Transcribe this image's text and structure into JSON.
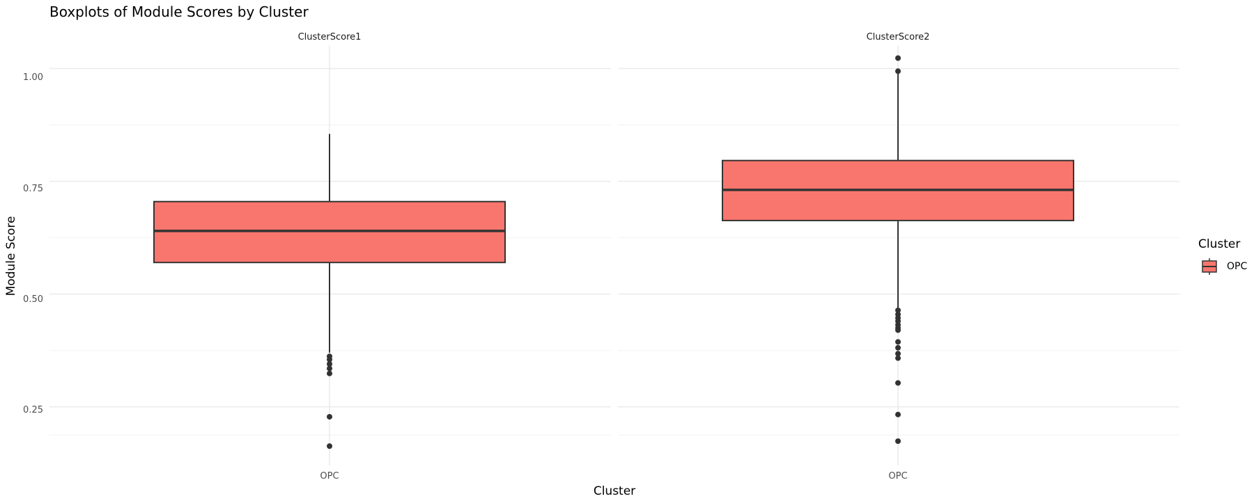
{
  "chart_data": {
    "type": "boxplot",
    "title": "Boxplots of Module Scores by Cluster",
    "xlabel": "Cluster",
    "ylabel": "Module Score",
    "ylim": [
      0.12,
      1.05
    ],
    "yticks": [
      0.25,
      0.5,
      0.75,
      1.0
    ],
    "ytick_labels": [
      "0.25",
      "0.50",
      "0.75",
      "1.00"
    ],
    "grid": true,
    "legend": {
      "title": "Cluster",
      "position": "right",
      "entries": [
        {
          "label": "OPC",
          "color": "#F8766D"
        }
      ]
    },
    "panels": [
      {
        "strip": "ClusterScore1",
        "category": "OPC",
        "q1": 0.57,
        "median": 0.64,
        "q3": 0.705,
        "whisker_low": 0.37,
        "whisker_high": 0.855,
        "outliers": [
          0.362,
          0.355,
          0.345,
          0.335,
          0.324,
          0.228,
          0.163
        ]
      },
      {
        "strip": "ClusterScore2",
        "category": "OPC",
        "q1": 0.663,
        "median": 0.731,
        "q3": 0.796,
        "whisker_low": 0.47,
        "whisker_high": 0.995,
        "outliers": [
          1.023,
          0.994,
          0.464,
          0.455,
          0.447,
          0.44,
          0.432,
          0.425,
          0.42,
          0.394,
          0.381,
          0.368,
          0.358,
          0.303,
          0.233,
          0.174
        ]
      }
    ]
  },
  "colors": {
    "fill": "#F8766D",
    "stroke": "#333333",
    "grid_major": "#EBEBEB",
    "grid_minor": "#F4F4F4",
    "text": "#000000",
    "tick_text": "#4D4D4D"
  }
}
